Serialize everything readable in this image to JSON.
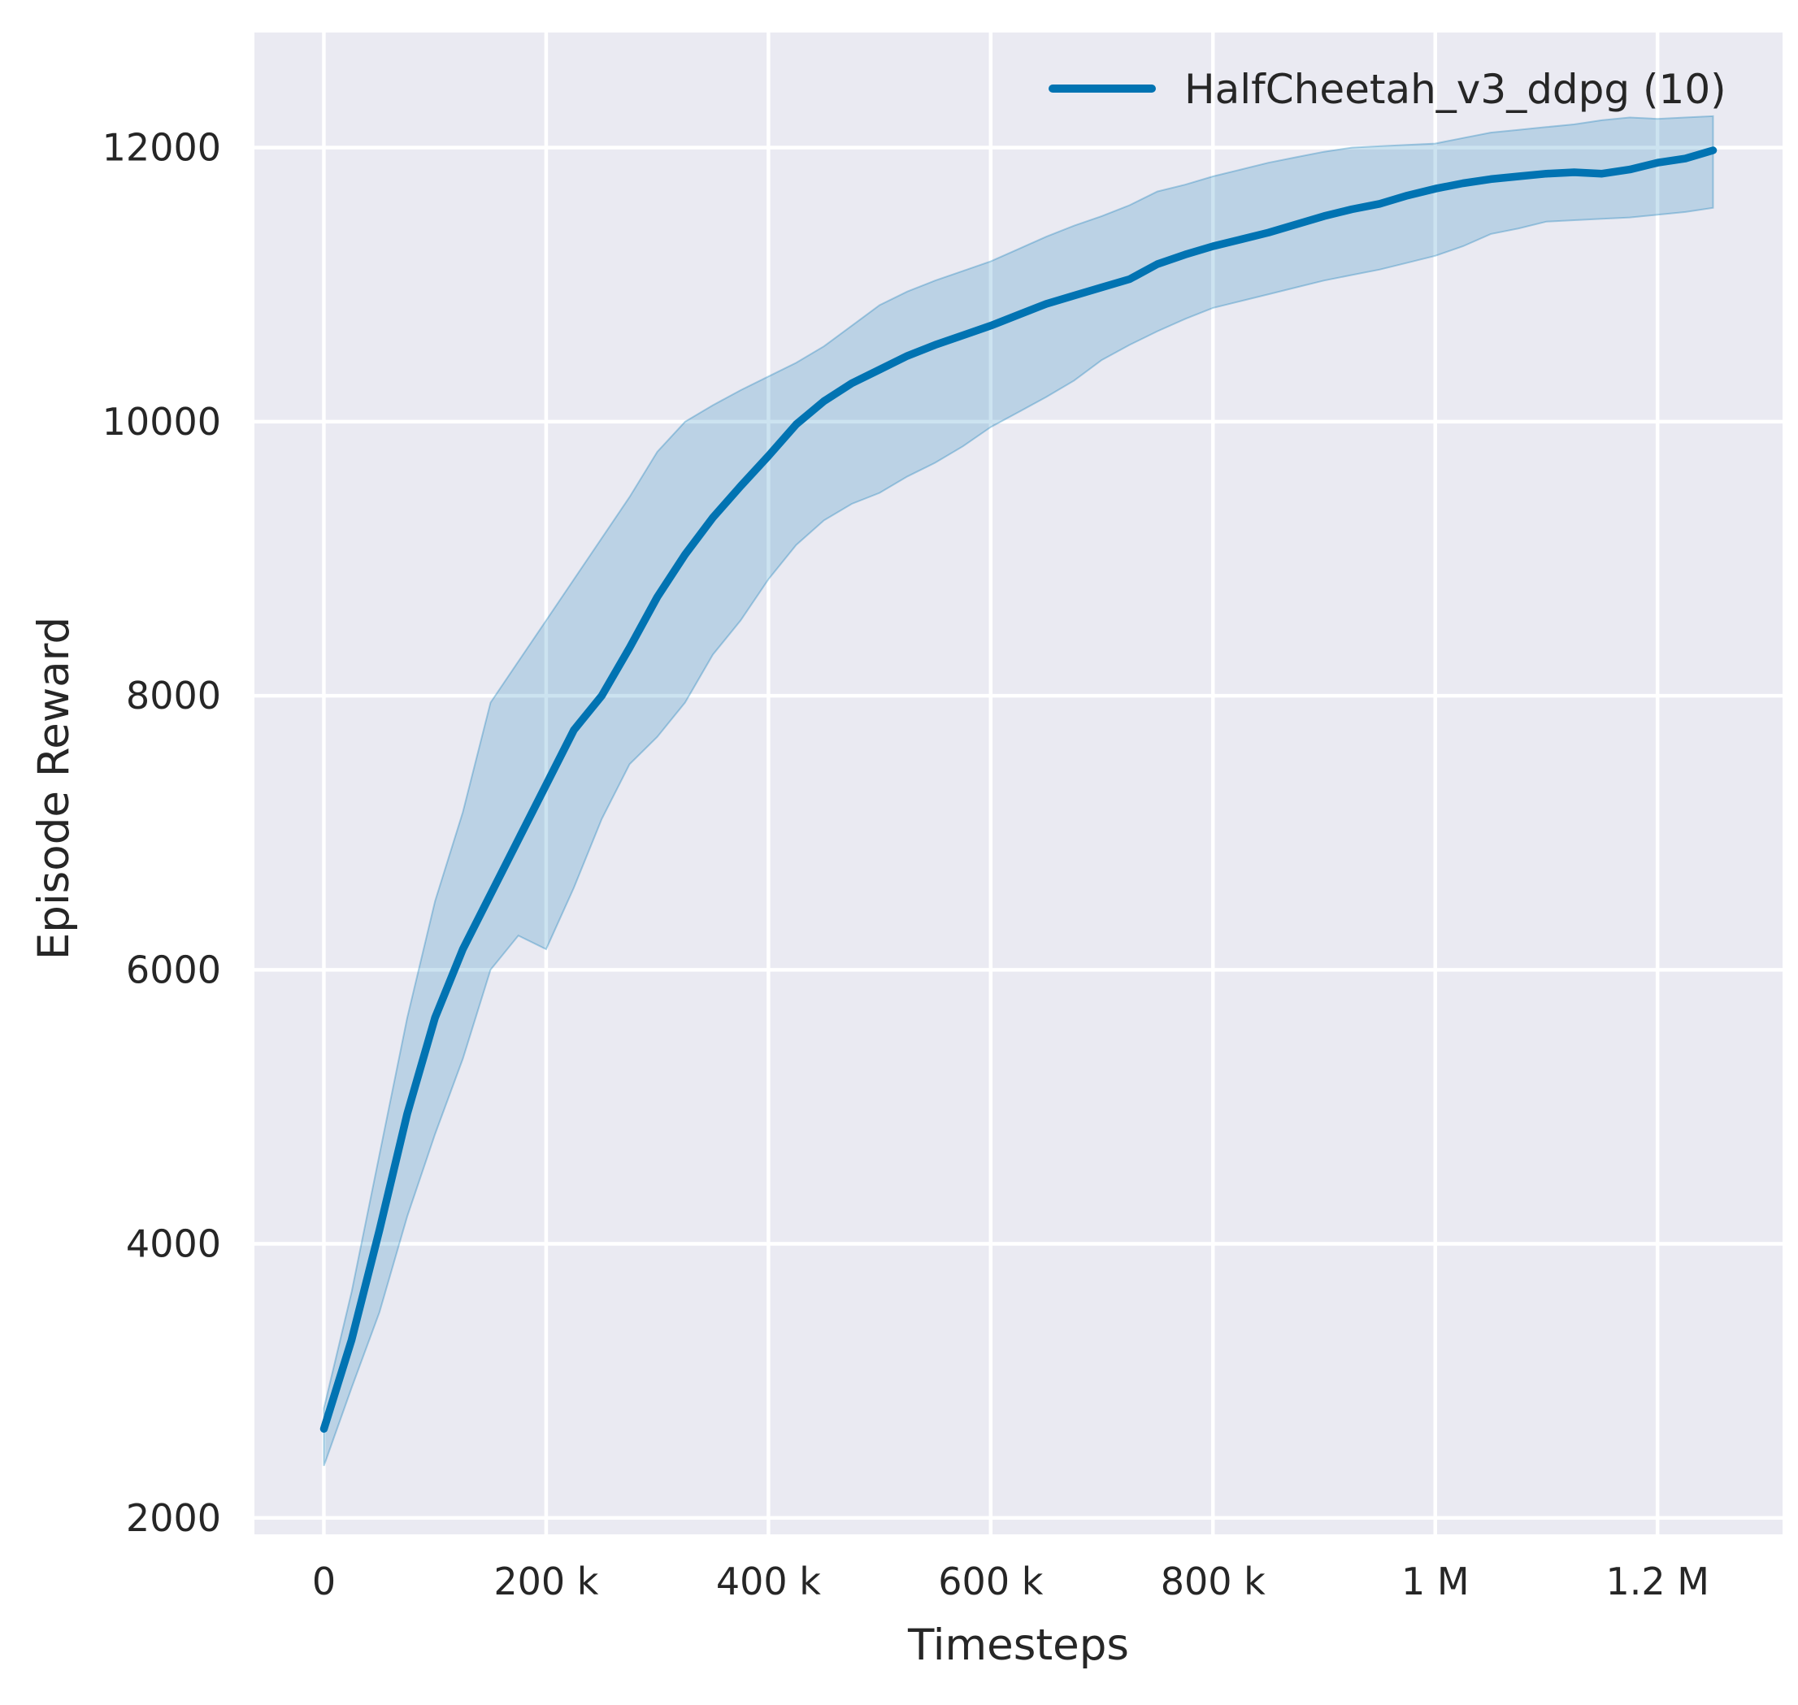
{
  "chart_data": {
    "type": "line",
    "title": "",
    "xlabel": "Timesteps",
    "ylabel": "Episode Reward",
    "style": "seaborn-darkgrid",
    "plot_bg": "#eaeaf2",
    "grid_color": "#ffffff",
    "grid": true,
    "legend_position": "upper right inside, no frame",
    "legend": [
      {
        "label": "HalfCheetah_v3_ddpg (10)",
        "color": "#0173b2"
      }
    ],
    "xlim": [
      -62500,
      1312500
    ],
    "ylim": [
      1880,
      12840
    ],
    "x_ticks": [
      0,
      200000,
      400000,
      600000,
      800000,
      1000000,
      1200000
    ],
    "x_tick_labels": [
      "0",
      "200 k",
      "400 k",
      "600 k",
      "800 k",
      "1 M",
      "1.2 M"
    ],
    "y_ticks": [
      2000,
      4000,
      6000,
      8000,
      10000,
      12000
    ],
    "y_tick_labels": [
      "2000",
      "4000",
      "6000",
      "8000",
      "10000",
      "12000"
    ],
    "series": [
      {
        "name": "HalfCheetah_v3_ddpg (10)",
        "color": "#0173b2",
        "band_fill": "rgba(1,115,178,0.20)",
        "band_edge": "rgba(1,115,178,0.30)",
        "x": [
          0,
          25000,
          50000,
          75000,
          100000,
          125000,
          150000,
          175000,
          200000,
          225000,
          250000,
          275000,
          300000,
          325000,
          350000,
          375000,
          400000,
          425000,
          450000,
          475000,
          500000,
          525000,
          550000,
          575000,
          600000,
          625000,
          650000,
          675000,
          700000,
          725000,
          750000,
          775000,
          800000,
          825000,
          850000,
          875000,
          900000,
          925000,
          950000,
          975000,
          1000000,
          1025000,
          1050000,
          1075000,
          1100000,
          1125000,
          1150000,
          1175000,
          1200000,
          1225000,
          1250000
        ],
        "mean": [
          2650,
          3300,
          4100,
          4950,
          5650,
          6150,
          6550,
          6950,
          7350,
          7750,
          8000,
          8350,
          8720,
          9030,
          9300,
          9530,
          9750,
          9980,
          10150,
          10280,
          10380,
          10480,
          10560,
          10630,
          10700,
          10780,
          10860,
          10920,
          10980,
          11040,
          11150,
          11220,
          11280,
          11330,
          11380,
          11440,
          11500,
          11550,
          11590,
          11650,
          11700,
          11740,
          11770,
          11790,
          11810,
          11820,
          11810,
          11840,
          11890,
          11920,
          11980
        ],
        "band_lower": [
          2380,
          2950,
          3500,
          4200,
          4800,
          5350,
          6000,
          6250,
          6150,
          6600,
          7100,
          7500,
          7700,
          7950,
          8300,
          8550,
          8850,
          9100,
          9280,
          9400,
          9480,
          9600,
          9700,
          9820,
          9960,
          10070,
          10180,
          10300,
          10450,
          10560,
          10660,
          10750,
          10830,
          10880,
          10930,
          10980,
          11030,
          11070,
          11110,
          11160,
          11210,
          11280,
          11370,
          11410,
          11460,
          11470,
          11480,
          11490,
          11510,
          11530,
          11560
        ],
        "band_upper": [
          2800,
          3650,
          4650,
          5650,
          6500,
          7150,
          7950,
          8250,
          8550,
          8850,
          9150,
          9450,
          9780,
          10000,
          10120,
          10230,
          10330,
          10430,
          10550,
          10700,
          10850,
          10950,
          11030,
          11100,
          11170,
          11260,
          11350,
          11430,
          11500,
          11580,
          11680,
          11730,
          11790,
          11840,
          11890,
          11930,
          11970,
          12000,
          12010,
          12020,
          12030,
          12070,
          12110,
          12130,
          12150,
          12170,
          12200,
          12220,
          12210,
          12220,
          12230
        ]
      }
    ]
  }
}
